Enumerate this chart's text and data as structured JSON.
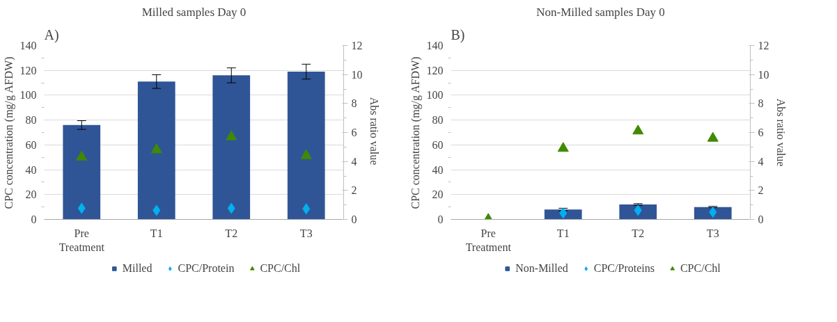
{
  "chart_data": [
    {
      "type": "bar",
      "title": "Milled samples Day 0",
      "ylabel": "CPC concentration (mg/g AFDW)",
      "y2label": "Abs  ratio value",
      "annotations": [
        "A)"
      ],
      "categories": [
        "Pre Treatment",
        "T1",
        "T2",
        "T3"
      ],
      "series": [
        {
          "name": "Milled",
          "color": "#2f5597",
          "values": [
            76,
            111,
            116,
            119
          ],
          "errors": [
            3.5,
            5.5,
            6,
            6
          ]
        },
        {
          "name": "CPC/Protein",
          "type": "scatter",
          "marker": "diamond",
          "axis": "y2",
          "color": "#00b0f0",
          "values": [
            0.77,
            0.63,
            0.77,
            0.73
          ]
        },
        {
          "name": "CPC/Chl",
          "type": "scatter",
          "marker": "triangle",
          "axis": "y2",
          "color": "#3f8a00",
          "values": [
            4.3,
            4.8,
            5.7,
            4.4
          ]
        }
      ],
      "ylim": [
        0,
        140
      ],
      "yticks": [
        0,
        20,
        40,
        60,
        80,
        100,
        120,
        140
      ],
      "y2lim": [
        0,
        12
      ],
      "y2ticks": [
        0,
        2,
        4,
        6,
        8,
        10,
        12
      ],
      "grid": "y",
      "legend": "bottom"
    },
    {
      "type": "bar",
      "title": "Non-Milled samples Day 0",
      "ylabel": "CPC concentration (mg/g AFDW)",
      "y2label": "Abs ratio value",
      "annotations": [
        "B)"
      ],
      "categories": [
        "Pre Treatment",
        "T1",
        "T2",
        "T3"
      ],
      "series": [
        {
          "name": "Non-Milled",
          "color": "#2f5597",
          "values": [
            0,
            8,
            12,
            10
          ],
          "errors": [
            null,
            1,
            0.7,
            0.5
          ]
        },
        {
          "name": "CPC/Proteins",
          "type": "scatter",
          "marker": "diamond",
          "axis": "y2",
          "color": "#00b0f0",
          "values": [
            0,
            0.44,
            0.63,
            0.5
          ]
        },
        {
          "name": "CPC/Chl",
          "type": "scatter",
          "marker": "triangle",
          "axis": "y2",
          "color": "#3f8a00",
          "values": [
            0,
            4.9,
            6.1,
            5.6
          ]
        }
      ],
      "ylim": [
        0,
        140
      ],
      "yticks": [
        0,
        20,
        40,
        60,
        80,
        100,
        120,
        140
      ],
      "y2lim": [
        0,
        12
      ],
      "y2ticks": [
        0,
        2,
        4,
        6,
        8,
        10,
        12
      ],
      "grid": "y",
      "legend": "bottom"
    }
  ]
}
